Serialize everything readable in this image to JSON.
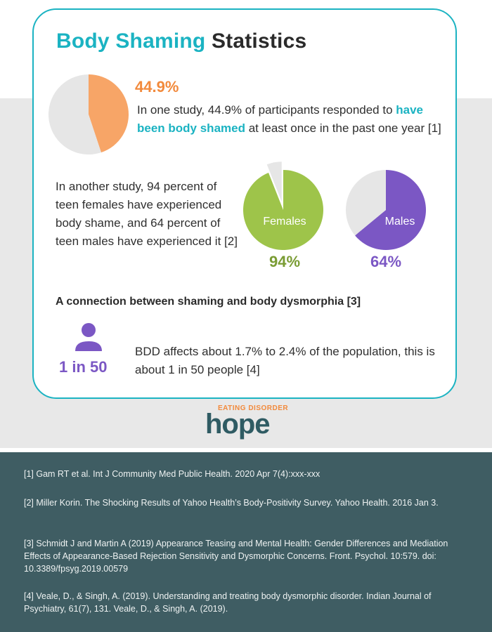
{
  "title": {
    "accent": "Body Shaming",
    "rest": " Statistics"
  },
  "stat1": {
    "percent_label": "44.9%",
    "text_before": "In one study, 44.9% of participants responded to ",
    "highlight": "have been body shamed",
    "text_after": " at least once in the past one year [1]"
  },
  "stat2": {
    "text": "In another study, 94 percent of teen females have experienced body shame, and 64 percent of teen males have experienced it [2]"
  },
  "chart_data": [
    {
      "type": "pie",
      "values": [
        44.9,
        55.1
      ],
      "colors": [
        "#f7a567",
        "#e6e6e6"
      ]
    },
    {
      "type": "pie",
      "label": "Females",
      "values": [
        94,
        6
      ],
      "value_label": "94%",
      "colors": [
        "#9ec44a",
        "#e6e6e6"
      ]
    },
    {
      "type": "pie",
      "label": "Males",
      "values": [
        64,
        36
      ],
      "value_label": "64%",
      "colors": [
        "#7b57c4",
        "#e6e6e6"
      ]
    }
  ],
  "colors": {
    "teal": "#1bb3c2",
    "orange": "#f28a3c",
    "green": "#7a9c34",
    "purple": "#7b57c4",
    "footer": "#3f5d63"
  },
  "connection": {
    "heading": "A connection between shaming and body dysmorphia [3]",
    "icon": "person-icon",
    "ratio": "1 in 50",
    "text": "BDD affects about 1.7% to 2.4% of the population, this is about 1 in 50 people [4]"
  },
  "logo": {
    "small": "EATING DISORDER",
    "big": "hope"
  },
  "references": [
    "[1] Gam RT et al. Int J Community Med Public Health. 2020 Apr 7(4):xxx-xxx",
    "[2] Miller Korin. The Shocking Results of Yahoo Health’s Body-Positivity Survey. Yahoo Health. 2016 Jan 3.",
    "[3] Schmidt J and Martin A (2019) Appearance Teasing and Mental Health: Gender Differences and Mediation Effects of Appearance-Based Rejection Sensitivity and Dysmorphic Concerns. Front. Psychol. 10:579. doi: 10.3389/fpsyg.2019.00579",
    "[4] Veale, D., & Singh, A. (2019). Understanding and treating body dysmorphic disorder. Indian Journal of Psychiatry, 61(7), 131. Veale, D., & Singh, A. (2019)."
  ]
}
